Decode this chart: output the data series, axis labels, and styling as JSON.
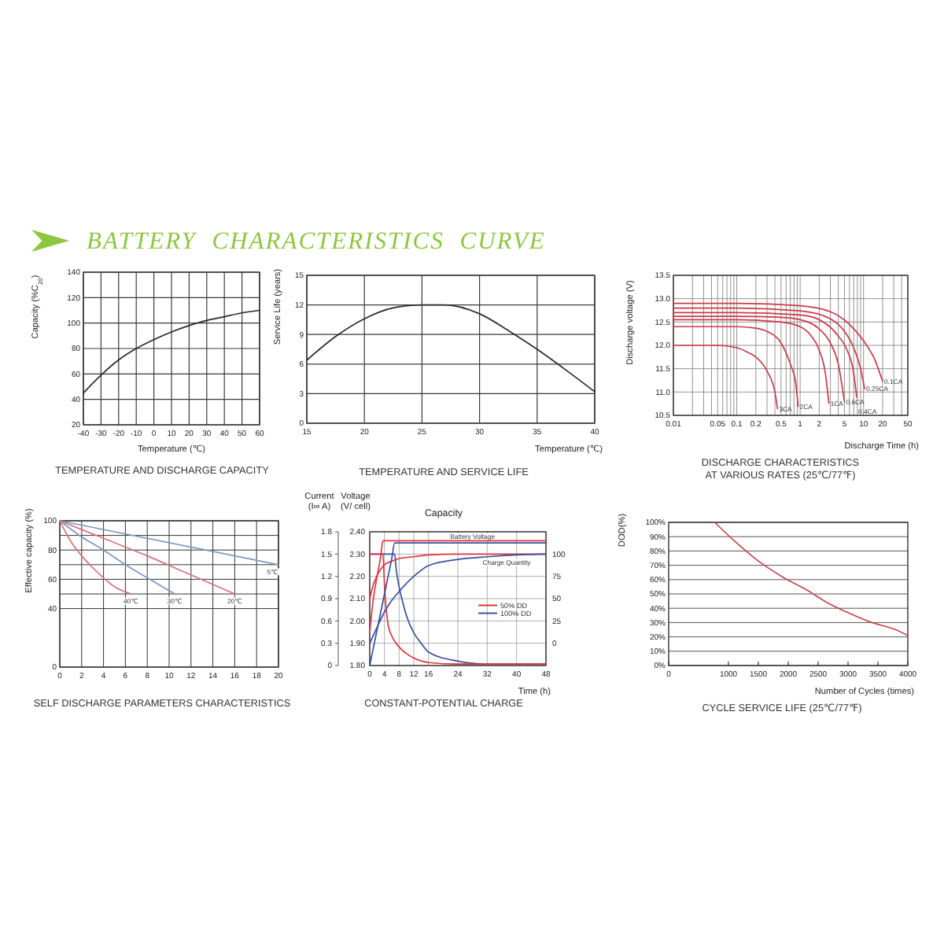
{
  "chart_data": [
    {
      "type": "other",
      "title": "BATTERY CHARACTERISTICS CURVE"
    },
    {
      "type": "line",
      "title": "TEMPERATURE AND DISCHARGE CAPACITY",
      "xlabel": "Temperature (℃)",
      "ylabel": "Capacity (%C$_{20}$)",
      "x": [
        -40,
        -30,
        -20,
        -10,
        0,
        10,
        20,
        30,
        40,
        50,
        60
      ],
      "series": [
        {
          "color": "#2b2b2b",
          "values": [
            45,
            59,
            71,
            80,
            87,
            93,
            98,
            102,
            105,
            108,
            110
          ]
        }
      ],
      "xlim": [
        -40,
        60
      ],
      "xticks": [
        -40,
        -30,
        -20,
        -10,
        0,
        10,
        20,
        30,
        40,
        50,
        60
      ],
      "ylim": [
        20,
        140
      ],
      "yticks": [
        20,
        40,
        60,
        80,
        100,
        120,
        140
      ],
      "grid": true
    },
    {
      "type": "line",
      "title": "TEMPERATURE AND SERVICE LIFE",
      "xlabel": "Temperature (℃)",
      "ylabel": "Service Life (years)",
      "x": [
        15,
        17.5,
        20,
        22.5,
        25,
        27,
        30,
        32.5,
        35,
        37.5,
        40
      ],
      "series": [
        {
          "color": "#2b2b2b",
          "values": [
            6.4,
            8.8,
            10.6,
            11.7,
            12,
            12,
            11.1,
            9.4,
            7.5,
            5.4,
            3.2
          ]
        }
      ],
      "xlim": [
        15,
        40
      ],
      "xticks": [
        15,
        20,
        25,
        30,
        35,
        40
      ],
      "ylim": [
        0,
        15
      ],
      "yticks": [
        0,
        3,
        6,
        9,
        12,
        15
      ],
      "grid": true
    },
    {
      "type": "line",
      "title": "DISCHARGE CHARACTERISTICS\nAT VARIOUS RATES (25℃/77℉)",
      "xlabel": "Discharge Time (h)",
      "ylabel": "Discharge voltage (V)",
      "log": "x",
      "xlim": [
        0.01,
        50
      ],
      "xticks": [
        0.01,
        {
          "value": 0.02,
          "label": null
        },
        {
          "value": 0.03,
          "label": null
        },
        {
          "value": 0.04,
          "label": null
        },
        0.05,
        {
          "value": 0.06,
          "label": null
        },
        {
          "value": 0.07,
          "label": null
        },
        {
          "value": 0.08,
          "label": null
        },
        {
          "value": 0.09,
          "label": null
        },
        0.1,
        0.2,
        {
          "value": 0.3,
          "label": null
        },
        {
          "value": 0.4,
          "label": null
        },
        0.5,
        {
          "value": 0.6,
          "label": null
        },
        {
          "value": 0.7,
          "label": null
        },
        {
          "value": 0.8,
          "label": null
        },
        {
          "value": 0.9,
          "label": null
        },
        1,
        2,
        {
          "value": 3,
          "label": null
        },
        {
          "value": 4,
          "label": null
        },
        5,
        {
          "value": 6,
          "label": null
        },
        {
          "value": 7,
          "label": null
        },
        {
          "value": 8,
          "label": null
        },
        {
          "value": 9,
          "label": null
        },
        10,
        20,
        {
          "value": 30,
          "label": null
        },
        {
          "value": 40,
          "label": null
        },
        50
      ],
      "ylim": [
        10.5,
        13.5
      ],
      "yticks": [
        10.5,
        {
          "value": 11,
          "label": "11.0"
        },
        11.5,
        {
          "value": 12,
          "label": "12.0"
        },
        12.5,
        {
          "value": 13,
          "label": "13.0"
        },
        13.5
      ],
      "grid": true,
      "series": [
        {
          "name": "3CA",
          "color": "#cc3a4a",
          "x": [
            0.01,
            0.05,
            0.1,
            0.15,
            0.2,
            0.3,
            0.4,
            0.44
          ],
          "values": [
            12.0,
            12.0,
            11.95,
            11.85,
            11.75,
            11.45,
            11.0,
            10.64
          ]
        },
        {
          "name": "2CA",
          "color": "#cc3a4a",
          "x": [
            0.01,
            0.1,
            0.2,
            0.3,
            0.5,
            0.7,
            0.85,
            0.93
          ],
          "values": [
            12.4,
            12.4,
            12.37,
            12.3,
            12.05,
            11.6,
            11.2,
            10.69
          ]
        },
        {
          "name": "1CA",
          "color": "#cc3a4a",
          "x": [
            0.01,
            0.1,
            0.5,
            1,
            1.5,
            2,
            2.5,
            2.84
          ],
          "values": [
            12.55,
            12.55,
            12.5,
            12.4,
            12.2,
            11.9,
            11.4,
            10.76
          ]
        },
        {
          "name": "0.6CA",
          "color": "#cc3a4a",
          "x": [
            0.01,
            0.1,
            0.5,
            1,
            2,
            3,
            4,
            5
          ],
          "values": [
            12.62,
            12.62,
            12.6,
            12.55,
            12.35,
            12.05,
            11.6,
            10.79
          ]
        },
        {
          "name": "0.4CA",
          "color": "#cc3a4a",
          "x": [
            0.01,
            0.1,
            1,
            2,
            4,
            5.5,
            7,
            7.8
          ],
          "values": [
            12.7,
            12.7,
            12.65,
            12.55,
            12.2,
            11.9,
            11.4,
            10.89
          ]
        },
        {
          "name": "0.25CA",
          "color": "#cc3a4a",
          "x": [
            0.01,
            0.1,
            1,
            3,
            5,
            7,
            9,
            10.4
          ],
          "values": [
            12.8,
            12.8,
            12.74,
            12.57,
            12.3,
            11.95,
            11.5,
            11.07
          ]
        },
        {
          "name": "0.1CA",
          "color": "#cc3a4a",
          "x": [
            0.01,
            0.1,
            1,
            3,
            6,
            10,
            15,
            20
          ],
          "values": [
            12.9,
            12.9,
            12.85,
            12.72,
            12.45,
            12.1,
            11.7,
            11.23
          ]
        }
      ]
    },
    {
      "type": "line",
      "title": "SELF DISCHARGE PARAMETERS CHARACTERISTICS",
      "ylabel": "Effective capacity (%)",
      "xlim": [
        0,
        20
      ],
      "xticks": [
        0,
        2,
        4,
        6,
        8,
        10,
        12,
        14,
        16,
        18,
        20
      ],
      "ylim": [
        0,
        100
      ],
      "yticks": [
        0,
        40,
        {
          "value": 50,
          "label": null
        },
        60,
        {
          "value": 70,
          "label": null
        },
        80,
        {
          "value": 90,
          "label": null
        },
        100
      ],
      "grid": true,
      "series": [
        {
          "name": "40℃",
          "color": "#d9707a",
          "x": [
            0,
            1,
            2,
            3,
            4,
            5,
            6.5
          ],
          "values": [
            100,
            86,
            76,
            68,
            61,
            55,
            50
          ]
        },
        {
          "name": "30℃",
          "color": "#7f98bd",
          "x": [
            0,
            2,
            4,
            6,
            8,
            10.5
          ],
          "values": [
            100,
            89,
            80,
            70,
            61,
            50
          ]
        },
        {
          "name": "20℃",
          "color": "#d9707a",
          "x": [
            0,
            4,
            8,
            12,
            16
          ],
          "values": [
            100,
            88,
            76,
            63,
            50
          ]
        },
        {
          "name": "5℃",
          "color": "#7f98bd",
          "x": [
            0,
            20
          ],
          "values": [
            100,
            70
          ]
        }
      ]
    },
    {
      "type": "line",
      "title": "CONSTANT-POTENTIAL CHARGE",
      "xlabel": "Time (h)",
      "ylabel": "Current\n(I∞ A)",
      "y2label": "Voltage\n(V/ cell)",
      "y3label": "Capacity",
      "xlim": [
        0,
        48
      ],
      "xticks": [
        0,
        4,
        8,
        12,
        16,
        24,
        32,
        40,
        48
      ],
      "ylim": [
        0,
        1.8
      ],
      "yticks": [
        0,
        0.3,
        0.6,
        0.9,
        1.2,
        1.5,
        1.8
      ],
      "y2lim": [
        1.8,
        2.4
      ],
      "y2ticks": [
        {
          "value": 1.8,
          "label": "1.80"
        },
        {
          "value": 1.9,
          "label": "1.90"
        },
        {
          "value": 2,
          "label": "2.00"
        },
        {
          "value": 2.1,
          "label": "2.10"
        },
        {
          "value": 2.2,
          "label": "2.20"
        },
        {
          "value": 2.3,
          "label": "2.30"
        },
        {
          "value": 2.4,
          "label": "2.40"
        }
      ],
      "y3lim": [
        -25,
        125
      ],
      "y3ticks": [
        0,
        25,
        50,
        75,
        100
      ],
      "grid": true,
      "legend": "right",
      "annotations": [
        {
          "text": "Battery Voltage",
          "x": 28,
          "y": 1.73
        },
        "Charge Quantity"
      ],
      "series": [
        {
          "color": "#3b4f9c",
          "x": [
            0,
            6.8,
            7.2,
            8,
            9,
            10,
            12,
            14,
            16,
            24,
            32,
            40,
            48
          ],
          "values": [
            1.5,
            1.5,
            1.3,
            1.06,
            0.85,
            0.67,
            0.44,
            0.3,
            0.18,
            0.06,
            0.02,
            0.02,
            0.02
          ]
        },
        {
          "color": "#e0343c",
          "x": [
            0,
            3.6,
            4,
            4.5,
            5,
            6,
            8,
            10,
            12,
            16,
            24,
            32,
            40,
            48
          ],
          "values": [
            1.5,
            1.5,
            1.1,
            0.75,
            0.55,
            0.4,
            0.25,
            0.16,
            0.1,
            0.04,
            0.02,
            0.02,
            0.02,
            0.02
          ]
        },
        {
          "color": "#e0343c",
          "axis": "y3",
          "x": [
            0,
            1,
            2,
            3,
            4,
            6,
            8,
            12,
            16,
            24,
            32,
            48
          ],
          "values": [
            50,
            66,
            76,
            83,
            88,
            92,
            95,
            97,
            99,
            100,
            100,
            100
          ]
        },
        {
          "color": "#3b4f9c",
          "axis": "y3",
          "x": [
            0,
            2,
            4,
            6,
            8,
            12,
            16,
            24,
            32,
            40,
            48
          ],
          "values": [
            0,
            18,
            35,
            48,
            58,
            75,
            87,
            94,
            97,
            99,
            100
          ]
        },
        {
          "name": "50% DD",
          "color": "#e0343c",
          "axis": "y2",
          "x": [
            0,
            1,
            2,
            3,
            3.6,
            48
          ],
          "values": [
            1.95,
            2.1,
            2.2,
            2.29,
            2.36,
            2.36
          ]
        },
        {
          "name": "100% DD",
          "color": "#3b4f9c",
          "axis": "y2",
          "x": [
            0,
            1,
            2,
            3,
            4,
            5,
            6,
            6.8,
            48
          ],
          "values": [
            1.8,
            1.88,
            1.96,
            2.04,
            2.12,
            2.2,
            2.28,
            2.35,
            2.35
          ]
        }
      ]
    },
    {
      "type": "line",
      "title": "CYCLE SERVICE LIFE (25℃/77℉)",
      "xlabel": "Number of Cycles (times)",
      "ylabel": "DOD(%)",
      "xlim": [
        0,
        4000
      ],
      "xticks": [
        0,
        1000,
        1500,
        2000,
        2500,
        3000,
        3500,
        4000
      ],
      "ylim": [
        0,
        100
      ],
      "yticks": [
        {
          "value": 0,
          "label": "0%"
        },
        {
          "value": 10,
          "label": "10%"
        },
        {
          "value": 20,
          "label": "20%"
        },
        {
          "value": 30,
          "label": "30%"
        },
        {
          "value": 40,
          "label": "40%"
        },
        {
          "value": 50,
          "label": "50%"
        },
        {
          "value": 60,
          "label": "60%"
        },
        {
          "value": 70,
          "label": "70%"
        },
        {
          "value": 80,
          "label": "80%"
        },
        {
          "value": 90,
          "label": "90%"
        },
        {
          "value": 100,
          "label": "100%"
        }
      ],
      "grid": "y",
      "x": [
        770,
        1100,
        1500,
        1900,
        2300,
        2650,
        3050,
        3400,
        3800,
        4000
      ],
      "series": [
        {
          "color": "#c4464f",
          "values": [
            100,
            87,
            73,
            62,
            53,
            44,
            36,
            30,
            25,
            21
          ]
        }
      ]
    }
  ]
}
